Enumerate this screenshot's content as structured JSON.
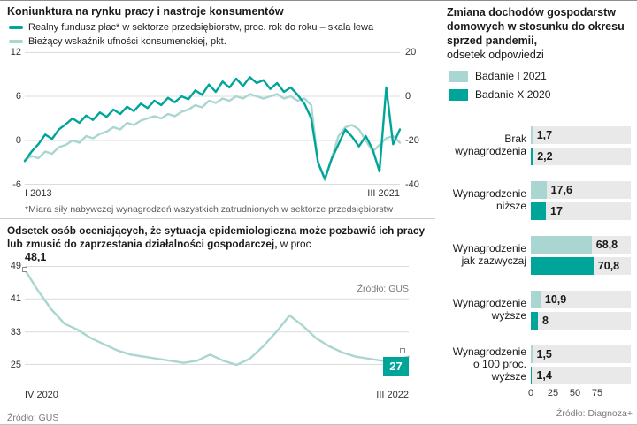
{
  "colors": {
    "dark_teal": "#00a59a",
    "light_teal": "#a9d6d1",
    "track_gray": "#e9e9e9"
  },
  "top_chart": {
    "title": "Koniunktura na rynku pracy i nastroje konsumentów",
    "legend": [
      {
        "label": "Realny fundusz płac* w sektorze przedsiębiorstw, proc. rok do roku – skala lewa"
      },
      {
        "label": "Bieżący wskaźnik ufności konsumenckiej, pkt."
      }
    ],
    "left_ticks": [
      "12",
      "6",
      "0",
      "-6"
    ],
    "right_ticks": [
      "20",
      "0",
      "-20",
      "-40"
    ],
    "x_start": "I 2013",
    "x_end": "III 2021",
    "footnote": "*Miara siły nabywczej wynagrodzeń wszystkich zatrudnionych w sektorze przedsiębiorstw"
  },
  "bottom_chart": {
    "title_bold": "Odsetek osób oceniających, że sytuacja epidemiologiczna może pozbawić ich pracy lub zmusić do zaprzestania działalności gospodarczej,",
    "title_rest": "w proc",
    "y_ticks": [
      "49",
      "41",
      "33",
      "25"
    ],
    "x_start": "IV 2020",
    "x_end": "III 2022",
    "first_point_label": "48,1",
    "last_point_label": "27",
    "source_inner": "Źródło: GUS",
    "source": "Źródło: GUS"
  },
  "right_panel": {
    "title_bold": "Zmiana dochodów gospodarstw domowych w stosunku do okresu sprzed pandemii,",
    "title_rest": "odsetek odpowiedzi",
    "legend": [
      {
        "label": "Badanie I 2021"
      },
      {
        "label": "Badanie X 2020"
      }
    ],
    "x_ticks": [
      "0",
      "25",
      "50",
      "75"
    ],
    "source": "Źródło: Diagnoza+",
    "rows": [
      {
        "label": "Brak wynagrodzenia",
        "v1": "1,7",
        "v2": "2,2"
      },
      {
        "label": "Wynagrodzenie niższe",
        "v1": "17,6",
        "v2": "17"
      },
      {
        "label": "Wynagrodzenie jak zazwyczaj",
        "v1": "68,8",
        "v2": "70,8"
      },
      {
        "label": "Wynagrodzenie wyższe",
        "v1": "10,9",
        "v2": "8"
      },
      {
        "label": "Wynagrodzenie o 100 proc. wyższe",
        "v1": "1,5",
        "v2": "1,4"
      }
    ]
  },
  "chart_data": [
    {
      "type": "line",
      "title": "Koniunktura na rynku pracy i nastroje konsumentów",
      "x_range": [
        "I 2013",
        "III 2021"
      ],
      "grid": true,
      "legend_position": "top",
      "series": [
        {
          "name": "Bieżący wskaźnik ufności konsumenckiej, pkt.",
          "axis": "right",
          "ylim": [
            -40,
            20
          ],
          "yticks": [
            20,
            0,
            -20,
            -40
          ],
          "color": "#a9d6d1",
          "values": [
            -29,
            -27,
            -28,
            -25,
            -26,
            -23,
            -22,
            -20,
            -21,
            -18,
            -19,
            -17,
            -16,
            -14,
            -15,
            -12,
            -13,
            -11,
            -10,
            -9,
            -10,
            -8,
            -9,
            -7,
            -6,
            -4,
            -5,
            -2,
            -3,
            -1,
            -2,
            0,
            -1,
            1,
            0,
            -1,
            0,
            1,
            -1,
            0,
            -2,
            -1,
            -4,
            -30,
            -38,
            -28,
            -18,
            -14,
            -13,
            -15,
            -20,
            -25,
            -22,
            -19,
            -18,
            -21
          ]
        },
        {
          "name": "Realny fundusz płac w sektorze przedsiębiorstw, proc. rok do roku",
          "axis": "left",
          "ylim": [
            -6,
            12
          ],
          "yticks": [
            12,
            6,
            0,
            -6
          ],
          "color": "#00a59a",
          "values": [
            -2.8,
            -1.5,
            -0.5,
            0.8,
            0.2,
            1.5,
            2.2,
            3.0,
            2.4,
            3.4,
            2.8,
            3.8,
            3.2,
            4.2,
            3.6,
            4.6,
            4.0,
            5.0,
            4.4,
            5.4,
            4.8,
            5.8,
            5.2,
            6.0,
            5.6,
            6.8,
            6.2,
            7.6,
            6.6,
            8.0,
            7.2,
            8.4,
            7.4,
            8.6,
            7.8,
            8.2,
            7.0,
            7.8,
            6.6,
            7.2,
            6.2,
            5.0,
            3.0,
            -3.0,
            -5.2,
            -2.5,
            -0.5,
            1.5,
            0.5,
            -0.8,
            0.6,
            -1.2,
            -4.2,
            7.2,
            -0.5,
            1.5
          ]
        }
      ]
    },
    {
      "type": "line",
      "title": "Odsetek osób oceniających, że sytuacja epidemiologiczna może pozbawić ich pracy lub zmusić do zaprzestania działalności gospodarczej, w proc",
      "x_range": [
        "IV 2020",
        "III 2022"
      ],
      "yticks": [
        49,
        41,
        33,
        25
      ],
      "grid": true,
      "series": [
        {
          "name": "odsetek odpowiedzi",
          "ylim": [
            25,
            49
          ],
          "color": "#a9d6d1",
          "first_value": 48.1,
          "last_value": 27,
          "values": [
            48.1,
            43,
            38.5,
            35,
            33.5,
            31.5,
            30,
            28.5,
            27.5,
            27,
            26.5,
            26,
            25.5,
            26,
            27.5,
            26,
            25,
            26.5,
            29.5,
            33,
            37,
            34.5,
            31.5,
            29.5,
            28,
            27,
            26.5,
            26,
            26.3,
            27
          ]
        }
      ]
    },
    {
      "type": "bar",
      "orientation": "horizontal",
      "title": "Zmiana dochodów gospodarstw domowych w stosunku do okresu sprzed pandemii, odsetek odpowiedzi",
      "categories": [
        "Brak wynagrodzenia",
        "Wynagrodzenie niższe",
        "Wynagrodzenie jak zazwyczaj",
        "Wynagrodzenie wyższe",
        "Wynagrodzenie o 100 proc. wyższe"
      ],
      "series": [
        {
          "name": "Badanie I 2021",
          "color": "#a9d6d1",
          "values": [
            1.7,
            17.6,
            68.8,
            10.9,
            1.5
          ]
        },
        {
          "name": "Badanie X 2020",
          "color": "#00a59a",
          "values": [
            2.2,
            17,
            70.8,
            8,
            1.4
          ]
        }
      ],
      "xlim": [
        0,
        75
      ],
      "x_ticks": [
        0,
        25,
        50,
        75
      ]
    }
  ]
}
